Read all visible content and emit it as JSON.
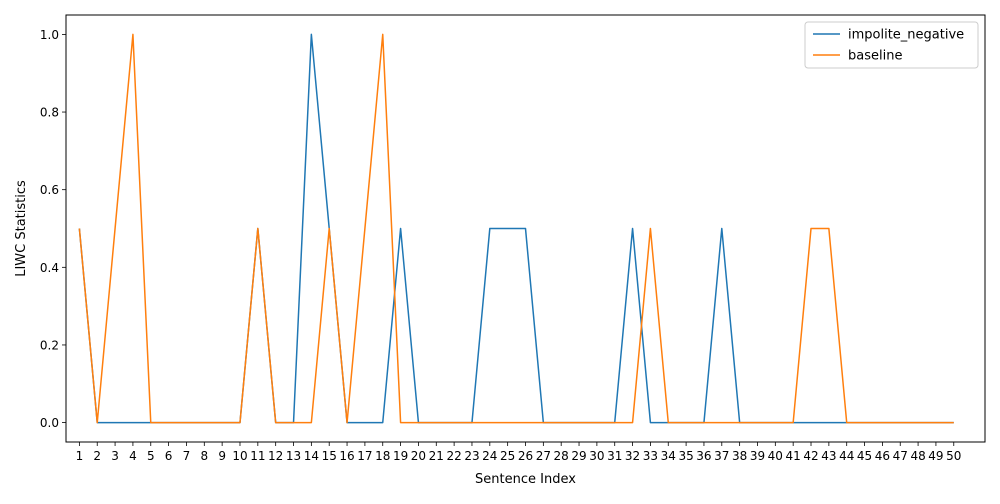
{
  "chart_data": {
    "type": "line",
    "title": "",
    "xlabel": "Sentence Index",
    "ylabel": "LIWC Statistics",
    "ylim": [
      -0.05,
      1.05
    ],
    "yticks": [
      "0.0",
      "0.2",
      "0.4",
      "0.6",
      "0.8",
      "1.0"
    ],
    "ytick_values": [
      0,
      0.2,
      0.4,
      0.6,
      0.8,
      1.0
    ],
    "x": [
      1,
      2,
      3,
      4,
      5,
      6,
      7,
      8,
      9,
      10,
      11,
      12,
      13,
      14,
      15,
      16,
      17,
      18,
      19,
      20,
      21,
      22,
      23,
      24,
      25,
      26,
      27,
      28,
      29,
      30,
      31,
      32,
      33,
      34,
      35,
      36,
      37,
      38,
      39,
      40,
      41,
      42,
      43,
      44,
      45,
      46,
      47,
      48,
      49,
      50
    ],
    "xtick_labels": [
      "1",
      "2",
      "3",
      "4",
      "5",
      "6",
      "7",
      "8",
      "9",
      "10",
      "11",
      "12",
      "13",
      "14",
      "15",
      "16",
      "17",
      "18",
      "19",
      "20",
      "21",
      "22",
      "23",
      "24",
      "25",
      "26",
      "27",
      "28",
      "29",
      "30",
      "31",
      "32",
      "33",
      "34",
      "35",
      "36",
      "37",
      "38",
      "39",
      "40",
      "41",
      "42",
      "43",
      "44",
      "45",
      "46",
      "47",
      "48",
      "49",
      "50"
    ],
    "grid": false,
    "legend_position": "top-right",
    "series": [
      {
        "name": "impolite_negative",
        "color": "#1f77b4",
        "values": [
          0.5,
          0,
          0,
          0,
          0,
          0,
          0,
          0,
          0,
          0,
          0.5,
          0,
          0,
          1.0,
          0.5,
          0,
          0,
          0,
          0.5,
          0,
          0,
          0,
          0,
          0.5,
          0.5,
          0.5,
          0,
          0,
          0,
          0,
          0,
          0.5,
          0,
          0,
          0,
          0,
          0.5,
          0,
          0,
          0,
          0,
          0,
          0,
          0,
          0,
          0,
          0,
          0,
          0,
          0
        ]
      },
      {
        "name": "baseline",
        "color": "#ff7f0e",
        "values": [
          0.5,
          0,
          0.5,
          1.0,
          0,
          0,
          0,
          0,
          0,
          0,
          0.5,
          0,
          0,
          0,
          0.5,
          0,
          0.5,
          1.0,
          0,
          0,
          0,
          0,
          0,
          0,
          0,
          0,
          0,
          0,
          0,
          0,
          0,
          0,
          0.5,
          0,
          0,
          0,
          0,
          0,
          0,
          0,
          0,
          0.5,
          0.5,
          0,
          0,
          0,
          0,
          0,
          0,
          0
        ]
      }
    ]
  }
}
